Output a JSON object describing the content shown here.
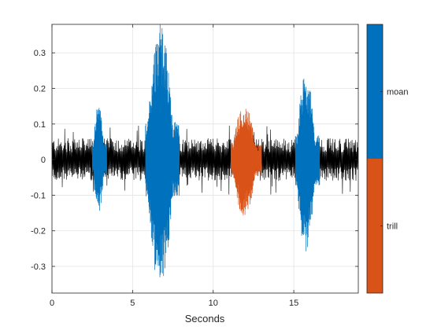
{
  "chart_data": {
    "type": "line",
    "title": "",
    "xlabel": "Seconds",
    "ylabel": "",
    "xlim": [
      0,
      19
    ],
    "ylim": [
      -0.375,
      0.38
    ],
    "xticks": [
      0,
      5,
      10,
      15
    ],
    "yticks": [
      0.3,
      0.2,
      0.1,
      0,
      -0.1,
      -0.2,
      -0.3
    ],
    "ytick_labels": [
      "0.3",
      "0.2",
      "0.1",
      "0",
      "-0.1",
      "-0.2",
      "-0.3"
    ],
    "grid": true,
    "background_noise": {
      "color": "#000000",
      "range": [
        0,
        19
      ],
      "amplitude": [
        -0.06,
        0.06
      ]
    },
    "segments": [
      {
        "label": "moan",
        "start": 2.5,
        "end": 3.4,
        "peak_pos": 0.16,
        "peak_neg": -0.155
      },
      {
        "label": "moan",
        "start": 5.8,
        "end": 7.9,
        "peak_pos": 0.38,
        "peak_neg": -0.37
      },
      {
        "label": "trill",
        "start": 11.1,
        "end": 13.0,
        "peak_pos": 0.155,
        "peak_neg": -0.16
      },
      {
        "label": "moan",
        "start": 15.1,
        "end": 16.6,
        "peak_pos": 0.245,
        "peak_neg": -0.26
      }
    ],
    "colorbar": {
      "categories": [
        {
          "label": "moan",
          "color": "#0072BD"
        },
        {
          "label": "trill",
          "color": "#D95319"
        }
      ]
    }
  }
}
